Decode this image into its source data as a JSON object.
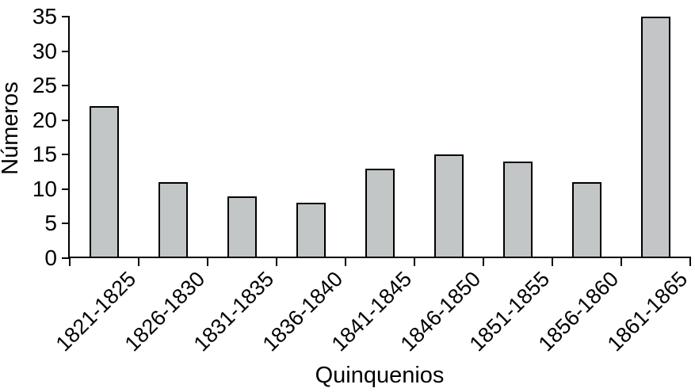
{
  "chart_data": {
    "type": "bar",
    "title": "",
    "categories": [
      "1821-1825",
      "1826-1830",
      "1831-1835",
      "1836-1840",
      "1841-1845",
      "1846-1850",
      "1851-1855",
      "1856-1860",
      "1861-1865"
    ],
    "values": [
      22,
      11,
      9,
      8,
      13,
      15,
      14,
      11,
      35
    ],
    "xlabel": "Quinquenios",
    "ylabel": "Números",
    "ylim": [
      0,
      35
    ],
    "yticks": [
      0,
      5,
      10,
      15,
      20,
      25,
      30,
      35
    ],
    "grid": false,
    "legend": false,
    "bar_fill": "#c3c6c6",
    "bar_border": "#000000",
    "axis_color": "#000000",
    "text_color": "#000000",
    "background": "#ffffff"
  }
}
